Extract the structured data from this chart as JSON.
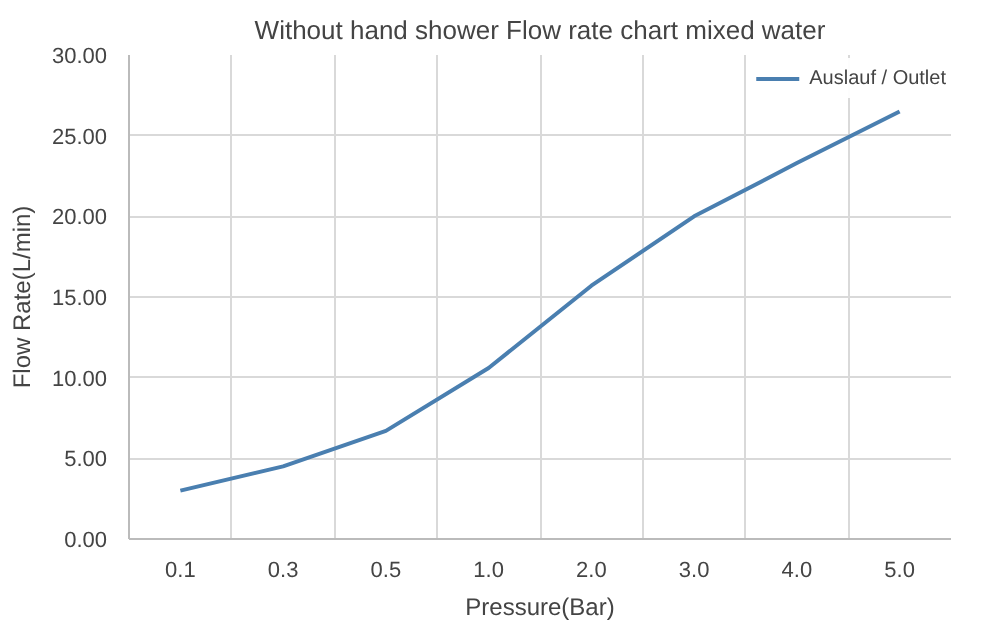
{
  "chart_data": {
    "type": "line",
    "title": "Without hand shower Flow rate chart mixed water",
    "xlabel": "Pressure(Bar)",
    "ylabel": "Flow Rate(L/min)",
    "categories": [
      "0.1",
      "0.3",
      "0.5",
      "1.0",
      "2.0",
      "3.0",
      "4.0",
      "5.0"
    ],
    "series": [
      {
        "name": "Auslauf / Outlet",
        "color": "#4a7fb0",
        "values": [
          3.0,
          4.5,
          6.7,
          10.6,
          15.7,
          20.0,
          23.3,
          26.5
        ]
      }
    ],
    "ylim": [
      0,
      30
    ],
    "yticks": [
      {
        "value": 0,
        "label": "0.00"
      },
      {
        "value": 5,
        "label": "5.00"
      },
      {
        "value": 10,
        "label": "10.00"
      },
      {
        "value": 15,
        "label": "15.00"
      },
      {
        "value": 20,
        "label": "20.00"
      },
      {
        "value": 25,
        "label": "25.00"
      },
      {
        "value": 30,
        "label": "30.00"
      }
    ],
    "grid": true,
    "legend": "top right",
    "marker": "none",
    "line_style": "solid"
  }
}
